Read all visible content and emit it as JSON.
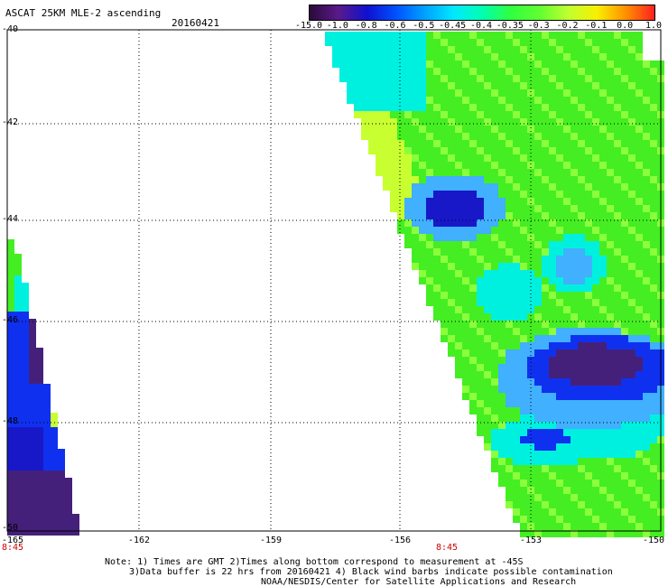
{
  "header": {
    "title": "ASCAT 25KM MLE-2 ascending",
    "date": "20160421"
  },
  "colorbar": {
    "labels": [
      "-15.0",
      "-1.0",
      "-0.8",
      "-0.6",
      "-0.5",
      "-0.45",
      "-0.4",
      "-0.35",
      "-0.3",
      "-0.2",
      "-0.1",
      "0.0",
      "1.0"
    ],
    "colors": [
      "#2a0a3a",
      "#5a1a8a",
      "#1010d0",
      "#0050ff",
      "#00a0ff",
      "#00e8ff",
      "#00ffb0",
      "#30ff40",
      "#60ff30",
      "#c0ff30",
      "#f8f000",
      "#ff9000",
      "#ff2020"
    ]
  },
  "axes": {
    "lat_labels": [
      "-40",
      "-42",
      "-44",
      "-46",
      "-48",
      "-50"
    ],
    "lon_labels": [
      "-165",
      "-162",
      "-159",
      "-156",
      "-153",
      "-150"
    ],
    "time_labels": [
      "8:45",
      "8:45"
    ]
  },
  "notes": {
    "line1": "Note: 1) Times are GMT 2)Times along bottom correspond to measurement at -45S",
    "line2": "3)Data buffer is 22 hrs from 20160421 4) Black wind barbs indicate possible contamination",
    "line3": "NOAA/NESDIS/Center for Satellite Applications and Research"
  },
  "palette": {
    "green": "#44ee22",
    "light_green": "#8cff3c",
    "cyan": "#00f0e0",
    "light_blue": "#40b0ff",
    "blue": "#1030f0",
    "navy": "#1818c8",
    "purple": "#44207a",
    "yellow_green": "#c8ff30"
  }
}
